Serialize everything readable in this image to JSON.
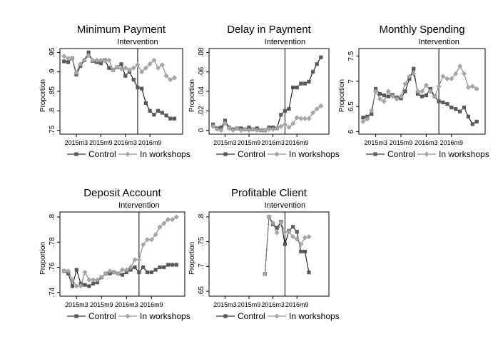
{
  "chart_data": [
    {
      "type": "line",
      "title": "Minimum Payment",
      "annotation": "Intervention",
      "ylabel": "Proportion",
      "ylim": [
        0.74,
        0.96
      ],
      "yticks": [
        0.75,
        0.8,
        0.85,
        0.9,
        0.95
      ],
      "ytick_labels": [
        ".75",
        ".8",
        ".85",
        ".9",
        ".95"
      ],
      "xlim": [
        0,
        30
      ],
      "xticks": [
        4,
        10,
        16,
        22
      ],
      "xtick_labels": [
        "2015m3",
        "2015m9",
        "2016m3",
        "2016m9"
      ],
      "intervention_x": 19,
      "series": [
        {
          "name": "Control",
          "color": "#595959",
          "marker": "square",
          "x": [
            1,
            2,
            3,
            4,
            5,
            6,
            7,
            8,
            9,
            10,
            11,
            12,
            13,
            14,
            15,
            16,
            17,
            18,
            19,
            20,
            21,
            22,
            23,
            24,
            25,
            26,
            27,
            28
          ],
          "values": [
            0.927,
            0.925,
            0.935,
            0.893,
            0.915,
            0.93,
            0.95,
            0.928,
            0.925,
            0.922,
            0.93,
            0.91,
            0.905,
            0.912,
            0.92,
            0.89,
            0.9,
            0.88,
            0.86,
            0.857,
            0.82,
            0.8,
            0.79,
            0.8,
            0.795,
            0.788,
            0.78,
            0.78
          ]
        },
        {
          "name": "In workshops",
          "color": "#a6a6a6",
          "marker": "diamond",
          "x": [
            1,
            2,
            3,
            4,
            5,
            6,
            7,
            8,
            9,
            10,
            11,
            12,
            13,
            14,
            15,
            16,
            17,
            18,
            19,
            20,
            21,
            22,
            23,
            24,
            25,
            26,
            27,
            28
          ],
          "values": [
            0.94,
            0.935,
            0.935,
            0.898,
            0.92,
            0.93,
            0.942,
            0.93,
            0.93,
            0.93,
            0.928,
            0.93,
            0.905,
            0.912,
            0.908,
            0.91,
            0.905,
            0.91,
            0.918,
            0.9,
            0.91,
            0.92,
            0.93,
            0.91,
            0.918,
            0.89,
            0.88,
            0.885
          ]
        }
      ],
      "legend_position": "bottom"
    },
    {
      "type": "line",
      "title": "Delay in Payment",
      "annotation": "Intervention",
      "ylabel": "Proportion",
      "ylim": [
        -0.004,
        0.084
      ],
      "yticks": [
        0,
        0.02,
        0.04,
        0.06,
        0.08
      ],
      "ytick_labels": [
        "0",
        ".02",
        ".04",
        ".06",
        ".08"
      ],
      "xlim": [
        0,
        30
      ],
      "xticks": [
        4,
        10,
        16,
        22
      ],
      "xtick_labels": [
        "2015m3",
        "2015m9",
        "2016m3",
        "2016m9"
      ],
      "intervention_x": 19,
      "series": [
        {
          "name": "Control",
          "color": "#595959",
          "marker": "square",
          "x": [
            1,
            2,
            3,
            4,
            5,
            6,
            7,
            8,
            9,
            10,
            11,
            12,
            13,
            14,
            15,
            16,
            17,
            18,
            19,
            20,
            21,
            22,
            23,
            24,
            25,
            26,
            27,
            28
          ],
          "values": [
            0.006,
            0.002,
            0.003,
            0.01,
            0.003,
            0.001,
            0.002,
            0.002,
            0.001,
            0.003,
            0.001,
            0.002,
            0.0,
            0.0,
            0.003,
            0.003,
            0.002,
            0.016,
            0.02,
            0.022,
            0.044,
            0.044,
            0.048,
            0.048,
            0.05,
            0.06,
            0.068,
            0.075
          ]
        },
        {
          "name": "In workshops",
          "color": "#a6a6a6",
          "marker": "diamond",
          "x": [
            1,
            2,
            3,
            4,
            5,
            6,
            7,
            8,
            9,
            10,
            11,
            12,
            13,
            14,
            15,
            16,
            17,
            18,
            19,
            20,
            21,
            22,
            23,
            24,
            25,
            26,
            27,
            28
          ],
          "values": [
            0.004,
            0.001,
            0.0,
            0.007,
            0.002,
            0.0,
            0.002,
            0.0,
            0.001,
            0.0,
            0.001,
            0.0,
            0.0,
            0.0,
            0.001,
            0.001,
            0.002,
            0.004,
            0.006,
            0.003,
            0.007,
            0.013,
            0.012,
            0.012,
            0.012,
            0.018,
            0.022,
            0.025
          ]
        }
      ],
      "legend_position": "bottom"
    },
    {
      "type": "line",
      "title": "Monthly Spending",
      "annotation": "Intervention",
      "ylabel": "Proportion",
      "ylim": [
        5.95,
        7.65
      ],
      "yticks": [
        6,
        6.5,
        7,
        7.5
      ],
      "ytick_labels": [
        "6",
        "6.5",
        "7",
        "7.5"
      ],
      "xlim": [
        0,
        30
      ],
      "xticks": [
        4,
        10,
        16,
        22
      ],
      "xtick_labels": [
        "2015m3",
        "2015m9",
        "2016m3",
        "2016m9"
      ],
      "intervention_x": 19,
      "series": [
        {
          "name": "Control",
          "color": "#595959",
          "marker": "square",
          "x": [
            1,
            2,
            3,
            4,
            5,
            6,
            7,
            8,
            9,
            10,
            11,
            12,
            13,
            14,
            15,
            16,
            17,
            18,
            19,
            20,
            21,
            22,
            23,
            24,
            25,
            26,
            27,
            28
          ],
          "values": [
            6.28,
            6.3,
            6.35,
            6.85,
            6.75,
            6.72,
            6.7,
            6.73,
            6.68,
            6.66,
            6.8,
            7.05,
            7.25,
            6.75,
            6.7,
            6.72,
            6.85,
            6.7,
            6.6,
            6.58,
            6.55,
            6.48,
            6.45,
            6.4,
            6.48,
            6.3,
            6.15,
            6.2
          ]
        },
        {
          "name": "In workshops",
          "color": "#a6a6a6",
          "marker": "diamond",
          "x": [
            1,
            2,
            3,
            4,
            5,
            6,
            7,
            8,
            9,
            10,
            11,
            12,
            13,
            14,
            15,
            16,
            17,
            18,
            19,
            20,
            21,
            22,
            23,
            24,
            25,
            26,
            27,
            28
          ],
          "values": [
            6.2,
            6.25,
            6.42,
            6.8,
            6.65,
            6.6,
            6.8,
            6.7,
            6.65,
            6.7,
            6.95,
            7.1,
            7.15,
            6.8,
            6.8,
            6.92,
            6.8,
            6.7,
            6.9,
            7.1,
            7.05,
            7.05,
            7.15,
            7.3,
            7.15,
            6.88,
            6.9,
            6.85
          ]
        }
      ],
      "legend_position": "bottom"
    },
    {
      "type": "line",
      "title": "Deposit Account",
      "annotation": "Intervention",
      "ylabel": "Proportion",
      "ylim": [
        0.737,
        0.804
      ],
      "yticks": [
        0.74,
        0.76,
        0.78,
        0.8
      ],
      "ytick_labels": [
        ".74",
        ".76",
        ".78",
        ".8"
      ],
      "xlim": [
        0,
        30
      ],
      "xticks": [
        4,
        10,
        16,
        22
      ],
      "xtick_labels": [
        "2015m3",
        "2015m9",
        "2016m3",
        "2016m9"
      ],
      "intervention_x": 19,
      "series": [
        {
          "name": "Control",
          "color": "#595959",
          "marker": "square",
          "x": [
            1,
            2,
            3,
            4,
            5,
            6,
            7,
            8,
            9,
            10,
            11,
            12,
            13,
            14,
            15,
            16,
            17,
            18,
            19,
            20,
            21,
            22,
            23,
            24,
            25,
            26,
            27,
            28
          ],
          "values": [
            0.757,
            0.755,
            0.745,
            0.758,
            0.747,
            0.746,
            0.745,
            0.747,
            0.748,
            0.752,
            0.755,
            0.755,
            0.756,
            0.755,
            0.754,
            0.756,
            0.758,
            0.76,
            0.756,
            0.76,
            0.756,
            0.756,
            0.758,
            0.76,
            0.76,
            0.762,
            0.762,
            0.762
          ]
        },
        {
          "name": "In workshops",
          "color": "#a6a6a6",
          "marker": "diamond",
          "x": [
            1,
            2,
            3,
            4,
            5,
            6,
            7,
            8,
            9,
            10,
            11,
            12,
            13,
            14,
            15,
            16,
            17,
            18,
            19,
            20,
            21,
            22,
            23,
            24,
            25,
            26,
            27,
            28
          ],
          "values": [
            0.757,
            0.757,
            0.75,
            0.745,
            0.745,
            0.756,
            0.75,
            0.75,
            0.75,
            0.752,
            0.755,
            0.757,
            0.756,
            0.755,
            0.758,
            0.758,
            0.76,
            0.766,
            0.766,
            0.778,
            0.782,
            0.782,
            0.786,
            0.792,
            0.795,
            0.798,
            0.798,
            0.8
          ]
        }
      ],
      "legend_position": "bottom"
    },
    {
      "type": "line",
      "title": "Profitable Client",
      "annotation": "Intervention",
      "ylabel": "Proportion",
      "ylim": [
        0.64,
        0.81
      ],
      "yticks": [
        0.65,
        0.7,
        0.75,
        0.8
      ],
      "ytick_labels": [
        ".65",
        ".7",
        ".75",
        ".8"
      ],
      "xlim": [
        0,
        30
      ],
      "xticks": [
        4,
        10,
        16,
        22
      ],
      "xtick_labels": [
        "2015m3",
        "2015m9",
        "2016m3",
        "2016m9"
      ],
      "intervention_x": 19,
      "series": [
        {
          "name": "Control",
          "color": "#595959",
          "marker": "square",
          "x": [
            14,
            15,
            16,
            17,
            18,
            19,
            20,
            21,
            22,
            23,
            24,
            25
          ],
          "values": [
            0.685,
            0.8,
            0.785,
            0.778,
            0.79,
            0.745,
            0.772,
            0.78,
            0.77,
            0.73,
            0.73,
            0.688
          ]
        },
        {
          "name": "In workshops",
          "color": "#a6a6a6",
          "marker": "diamond",
          "x": [
            14,
            15,
            16,
            17,
            18,
            19,
            20,
            21,
            22,
            23,
            24,
            25
          ],
          "values": [
            0.685,
            0.8,
            0.788,
            0.768,
            0.788,
            0.77,
            0.77,
            0.76,
            0.755,
            0.745,
            0.758,
            0.76
          ]
        }
      ],
      "legend_position": "bottom"
    }
  ]
}
